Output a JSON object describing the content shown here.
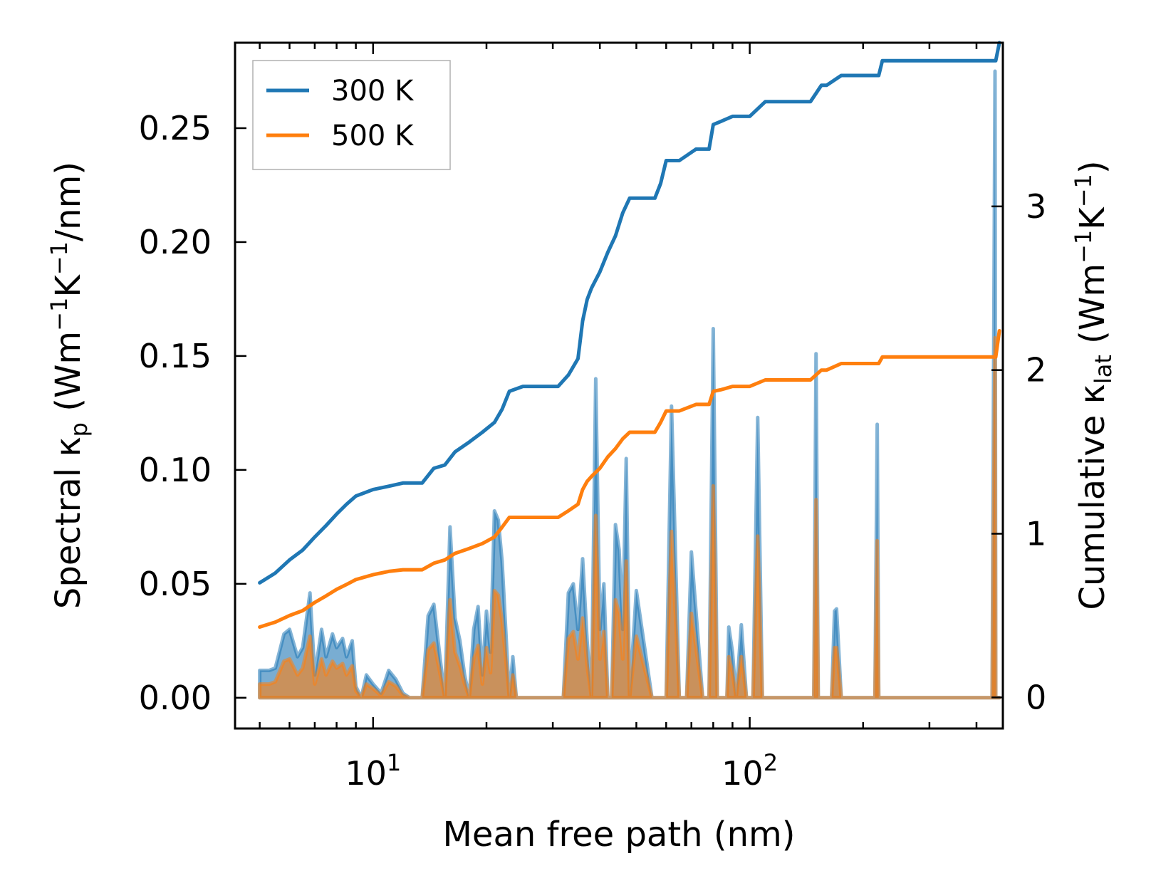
{
  "chart_data": {
    "type": "line",
    "title": "",
    "xlabel": "Mean free path (nm)",
    "xscale": "log",
    "xlim": [
      4.3,
      470
    ],
    "x_ticks": [
      {
        "value": 10,
        "base": "10",
        "exp": "1"
      },
      {
        "value": 100,
        "base": "10",
        "exp": "2"
      }
    ],
    "left_axis": {
      "label_main": "Spectral κ",
      "label_sub": "p",
      "label_unit_open": " (Wm",
      "label_sup1": "−1",
      "label_unit_mid": "K",
      "label_sup2": "−1",
      "label_unit_close": "/nm)",
      "ylim": [
        -0.0135,
        0.2875
      ],
      "ticks": [
        "0.00",
        "0.05",
        "0.10",
        "0.15",
        "0.20",
        "0.25"
      ],
      "tick_values": [
        0,
        0.05,
        0.1,
        0.15,
        0.2,
        0.25
      ]
    },
    "right_axis": {
      "label_main": "Cumulative κ",
      "label_sub": "lat",
      "label_unit_open": " (Wm",
      "label_sup1": "−1",
      "label_unit_mid": "K",
      "label_sup2": "−1",
      "label_unit_close": ")",
      "ylim": [
        -0.19,
        4.0
      ],
      "ticks": [
        "0",
        "1",
        "2",
        "3"
      ],
      "tick_values": [
        0,
        1,
        2,
        3
      ]
    },
    "legend": {
      "position": "top-left",
      "entries": [
        {
          "name": "300 K",
          "color": "#1f77b4"
        },
        {
          "name": "500 K",
          "color": "#ff7f0e"
        }
      ]
    },
    "series": [
      {
        "name": "300 K",
        "color": "#1f77b4",
        "axis": "right",
        "kind": "cumulative",
        "x": [
          5,
          5.5,
          6,
          6.5,
          7,
          7.5,
          8,
          8.5,
          9,
          10,
          11,
          12,
          13.5,
          14.5,
          15.5,
          16.5,
          18,
          19.5,
          21,
          22,
          23,
          25,
          28,
          31,
          33,
          35,
          36,
          37,
          38,
          40,
          42,
          44,
          46,
          48,
          52,
          56,
          58,
          60,
          65,
          72,
          78,
          80,
          84,
          90,
          100,
          110,
          130,
          145,
          155,
          160,
          175,
          200,
          220,
          225,
          300,
          450,
          460
        ],
        "y": [
          0.7,
          0.76,
          0.84,
          0.9,
          0.98,
          1.05,
          1.12,
          1.18,
          1.23,
          1.27,
          1.29,
          1.31,
          1.31,
          1.4,
          1.42,
          1.5,
          1.56,
          1.62,
          1.68,
          1.76,
          1.87,
          1.9,
          1.9,
          1.9,
          1.97,
          2.07,
          2.3,
          2.43,
          2.5,
          2.6,
          2.72,
          2.82,
          2.96,
          3.05,
          3.05,
          3.05,
          3.14,
          3.28,
          3.28,
          3.35,
          3.35,
          3.5,
          3.52,
          3.55,
          3.55,
          3.64,
          3.64,
          3.64,
          3.74,
          3.74,
          3.8,
          3.8,
          3.8,
          3.89,
          3.89,
          3.89,
          4.0
        ]
      },
      {
        "name": "500 K",
        "color": "#ff7f0e",
        "axis": "right",
        "kind": "cumulative",
        "x": [
          5,
          5.5,
          6,
          6.5,
          7,
          7.5,
          8,
          8.5,
          9,
          10,
          11,
          12,
          13.5,
          14.5,
          15.5,
          16.5,
          18,
          19.5,
          21,
          22,
          23,
          25,
          28,
          31,
          33,
          35,
          36,
          37,
          38,
          40,
          42,
          44,
          46,
          48,
          52,
          56,
          58,
          60,
          65,
          72,
          78,
          80,
          84,
          90,
          100,
          110,
          130,
          145,
          155,
          160,
          175,
          200,
          220,
          225,
          300,
          450,
          460
        ],
        "y": [
          0.43,
          0.46,
          0.5,
          0.53,
          0.58,
          0.62,
          0.66,
          0.69,
          0.72,
          0.75,
          0.77,
          0.78,
          0.78,
          0.82,
          0.84,
          0.88,
          0.91,
          0.94,
          0.98,
          1.04,
          1.1,
          1.1,
          1.1,
          1.1,
          1.14,
          1.18,
          1.27,
          1.32,
          1.35,
          1.4,
          1.47,
          1.52,
          1.58,
          1.62,
          1.62,
          1.62,
          1.68,
          1.75,
          1.75,
          1.79,
          1.79,
          1.87,
          1.88,
          1.9,
          1.9,
          1.94,
          1.94,
          1.94,
          2.0,
          2.0,
          2.04,
          2.04,
          2.04,
          2.08,
          2.08,
          2.08,
          2.24
        ]
      },
      {
        "name": "300 K spectral",
        "color": "#1f77b4",
        "axis": "left",
        "kind": "spectral",
        "x": [
          5,
          5.3,
          5.5,
          5.8,
          6,
          6.3,
          6.5,
          6.8,
          7,
          7.3,
          7.5,
          7.8,
          8,
          8.3,
          8.5,
          8.8,
          9,
          9.3,
          9.6,
          10,
          10.5,
          11,
          11.5,
          12,
          12.5,
          13,
          13.5,
          14,
          14.5,
          15,
          15.5,
          16,
          16.5,
          17,
          17.5,
          18,
          18.5,
          19,
          19.5,
          20,
          20.5,
          21,
          21.5,
          22,
          22.5,
          23,
          23.5,
          24,
          25,
          28,
          30,
          31,
          32,
          33,
          34,
          35,
          36,
          37,
          38,
          39,
          40,
          41,
          42,
          43,
          44,
          45,
          46,
          47,
          48,
          50,
          55,
          58,
          60,
          62,
          65,
          68,
          70,
          75,
          78,
          80,
          82,
          85,
          87,
          88,
          90,
          92,
          95,
          98,
          100,
          102,
          105,
          108,
          110,
          115,
          140,
          148,
          150,
          152,
          160,
          165,
          168,
          170,
          175,
          210,
          215,
          218,
          220,
          224,
          230,
          440,
          448,
          450,
          455,
          460
        ],
        "y": [
          0.012,
          0.012,
          0.013,
          0.028,
          0.03,
          0.018,
          0.022,
          0.046,
          0.01,
          0.03,
          0.018,
          0.028,
          0.022,
          0.026,
          0.018,
          0.025,
          0.005,
          0.0,
          0.01,
          0.006,
          0.002,
          0.012,
          0.008,
          0.002,
          0.0,
          0.0,
          0.0,
          0.036,
          0.041,
          0.02,
          0.0,
          0.075,
          0.035,
          0.025,
          0.01,
          0.0,
          0.03,
          0.04,
          0.01,
          0.038,
          0.02,
          0.082,
          0.078,
          0.06,
          0.03,
          0.0,
          0.018,
          0.0,
          0.0,
          0.0,
          0.0,
          0.0,
          0.0,
          0.046,
          0.05,
          0.03,
          0.061,
          0.025,
          0.0,
          0.14,
          0.03,
          0.05,
          0.0,
          0.0,
          0.076,
          0.065,
          0.03,
          0.105,
          0.0,
          0.047,
          0.0,
          0.0,
          0.0,
          0.128,
          0.0,
          0.0,
          0.064,
          0.0,
          0.0,
          0.162,
          0.0,
          0.0,
          0.0,
          0.031,
          0.02,
          0.0,
          0.032,
          0.0,
          0.0,
          0.0,
          0.123,
          0.0,
          0.0,
          0.0,
          0.0,
          0.0,
          0.151,
          0.0,
          0.0,
          0.0,
          0.038,
          0.039,
          0.0,
          0.0,
          0.0,
          0.12,
          0.0,
          0.0,
          0.0,
          0.0,
          0.275,
          0.0,
          0.0,
          0.0
        ]
      },
      {
        "name": "500 K spectral",
        "color": "#ff7f0e",
        "axis": "left",
        "kind": "spectral",
        "x": [
          5,
          5.3,
          5.5,
          5.8,
          6,
          6.3,
          6.5,
          6.8,
          7,
          7.3,
          7.5,
          7.8,
          8,
          8.3,
          8.5,
          8.8,
          9,
          9.3,
          9.6,
          10,
          10.5,
          11,
          11.5,
          12,
          12.5,
          13,
          13.5,
          14,
          14.5,
          15,
          15.5,
          16,
          16.5,
          17,
          17.5,
          18,
          18.5,
          19,
          19.5,
          20,
          20.5,
          21,
          21.5,
          22,
          22.5,
          23,
          23.5,
          24,
          25,
          28,
          30,
          31,
          32,
          33,
          34,
          35,
          36,
          37,
          38,
          39,
          40,
          41,
          42,
          43,
          44,
          45,
          46,
          47,
          48,
          50,
          55,
          58,
          60,
          62,
          65,
          68,
          70,
          75,
          78,
          80,
          82,
          85,
          87,
          88,
          90,
          92,
          95,
          98,
          100,
          102,
          105,
          108,
          110,
          115,
          140,
          148,
          150,
          152,
          160,
          165,
          168,
          170,
          175,
          210,
          215,
          218,
          220,
          224,
          230,
          440,
          448,
          450,
          455,
          460
        ],
        "y": [
          0.006,
          0.006,
          0.007,
          0.016,
          0.017,
          0.01,
          0.013,
          0.027,
          0.006,
          0.017,
          0.01,
          0.016,
          0.013,
          0.015,
          0.01,
          0.014,
          0.003,
          0.0,
          0.006,
          0.004,
          0.001,
          0.007,
          0.005,
          0.001,
          0.0,
          0.0,
          0.0,
          0.021,
          0.024,
          0.012,
          0.0,
          0.043,
          0.02,
          0.014,
          0.006,
          0.0,
          0.017,
          0.023,
          0.006,
          0.022,
          0.011,
          0.047,
          0.045,
          0.034,
          0.017,
          0.0,
          0.01,
          0.0,
          0.0,
          0.0,
          0.0,
          0.0,
          0.0,
          0.026,
          0.029,
          0.017,
          0.035,
          0.014,
          0.0,
          0.08,
          0.017,
          0.029,
          0.0,
          0.0,
          0.043,
          0.037,
          0.017,
          0.06,
          0.0,
          0.027,
          0.0,
          0.0,
          0.0,
          0.073,
          0.0,
          0.0,
          0.037,
          0.0,
          0.0,
          0.093,
          0.0,
          0.0,
          0.0,
          0.018,
          0.011,
          0.0,
          0.018,
          0.0,
          0.0,
          0.0,
          0.071,
          0.0,
          0.0,
          0.0,
          0.0,
          0.0,
          0.087,
          0.0,
          0.0,
          0.0,
          0.022,
          0.022,
          0.0,
          0.0,
          0.0,
          0.069,
          0.0,
          0.0,
          0.0,
          0.0,
          0.158,
          0.0,
          0.0,
          0.0
        ]
      }
    ]
  }
}
